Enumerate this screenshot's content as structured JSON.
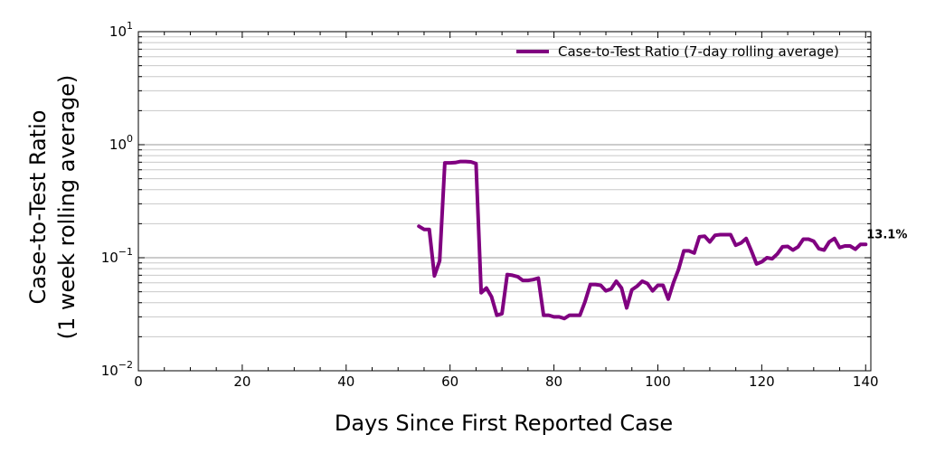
{
  "chart_data": {
    "type": "line",
    "title": "",
    "xlabel": "Days Since First Reported Case",
    "ylabel_line1": "Case-to-Test Ratio",
    "ylabel_line2": "(1 week rolling average)",
    "xlim": [
      0,
      141
    ],
    "ylim": [
      0.01,
      10
    ],
    "y_scale": "log",
    "grid": "horizontal",
    "x_ticks": [
      {
        "value": 0,
        "label": "0"
      },
      {
        "value": 20,
        "label": "20"
      },
      {
        "value": 40,
        "label": "40"
      },
      {
        "value": 60,
        "label": "60"
      },
      {
        "value": 80,
        "label": "80"
      },
      {
        "value": 100,
        "label": "100"
      },
      {
        "value": 120,
        "label": "120"
      },
      {
        "value": 140,
        "label": "140"
      }
    ],
    "y_ticks": [
      {
        "value": 0.01,
        "base": "10",
        "exp": "−2"
      },
      {
        "value": 0.1,
        "base": "10",
        "exp": "−1"
      },
      {
        "value": 1,
        "base": "10",
        "exp": "0"
      },
      {
        "value": 10,
        "base": "10",
        "exp": "1"
      }
    ],
    "legend": {
      "position": "top-right"
    },
    "series": [
      {
        "name": "Case-to-Test Ratio (7-day rolling average)",
        "color": "#800080",
        "x": [
          54,
          55,
          56,
          57,
          58,
          59,
          60,
          61,
          62,
          63,
          64,
          65,
          66,
          67,
          68,
          69,
          70,
          71,
          72,
          73,
          74,
          75,
          76,
          77,
          78,
          79,
          80,
          81,
          82,
          83,
          84,
          85,
          86,
          87,
          88,
          89,
          90,
          91,
          92,
          93,
          94,
          95,
          96,
          97,
          98,
          99,
          100,
          101,
          102,
          103,
          104,
          105,
          106,
          107,
          108,
          109,
          110,
          111,
          112,
          113,
          114,
          115,
          116,
          117,
          118,
          119,
          120,
          121,
          122,
          123,
          124,
          125,
          126,
          127,
          128,
          129,
          130,
          131,
          132,
          133,
          134,
          135,
          136,
          137,
          138,
          139,
          140
        ],
        "y": [
          0.19,
          0.178,
          0.178,
          0.069,
          0.094,
          0.69,
          0.69,
          0.695,
          0.71,
          0.71,
          0.705,
          0.68,
          0.049,
          0.054,
          0.045,
          0.031,
          0.032,
          0.071,
          0.07,
          0.068,
          0.063,
          0.063,
          0.064,
          0.066,
          0.031,
          0.031,
          0.03,
          0.03,
          0.029,
          0.031,
          0.031,
          0.031,
          0.041,
          0.058,
          0.058,
          0.057,
          0.051,
          0.053,
          0.062,
          0.054,
          0.036,
          0.052,
          0.056,
          0.062,
          0.059,
          0.051,
          0.057,
          0.057,
          0.043,
          0.06,
          0.079,
          0.115,
          0.115,
          0.11,
          0.153,
          0.155,
          0.138,
          0.158,
          0.16,
          0.16,
          0.16,
          0.129,
          0.135,
          0.148,
          0.115,
          0.088,
          0.092,
          0.1,
          0.098,
          0.108,
          0.125,
          0.126,
          0.117,
          0.125,
          0.146,
          0.146,
          0.14,
          0.12,
          0.117,
          0.138,
          0.148,
          0.123,
          0.127,
          0.127,
          0.119,
          0.131,
          0.131
        ]
      }
    ],
    "annotations": [
      {
        "text": "13.1%",
        "x": 140,
        "y": 0.131
      }
    ]
  }
}
